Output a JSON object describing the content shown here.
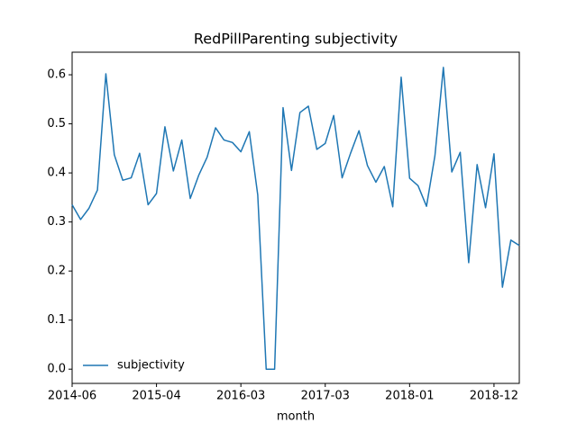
{
  "chart_data": {
    "type": "line",
    "title": "RedPillParenting subjectivity",
    "x_label": "month",
    "categories": [
      "2014-06",
      null,
      null,
      null,
      null,
      null,
      null,
      null,
      null,
      null,
      "2015-04",
      null,
      null,
      null,
      null,
      null,
      null,
      null,
      null,
      null,
      "2016-03",
      null,
      null,
      null,
      null,
      null,
      null,
      null,
      null,
      null,
      "2017-03",
      null,
      null,
      null,
      null,
      null,
      null,
      null,
      null,
      null,
      "2018-01",
      null,
      null,
      null,
      null,
      null,
      null,
      null,
      null,
      null,
      "2018-12",
      null,
      null,
      null
    ],
    "series": [
      {
        "name": "subjectivity",
        "color": "#1f77b4",
        "values": [
          0.335,
          0.305,
          0.328,
          0.365,
          0.602,
          0.437,
          0.385,
          0.39,
          0.44,
          0.335,
          0.358,
          0.494,
          0.404,
          0.467,
          0.348,
          0.395,
          0.432,
          0.492,
          0.467,
          0.462,
          0.443,
          0.484,
          0.355,
          0.0,
          0.0,
          0.533,
          0.405,
          0.523,
          0.536,
          0.448,
          0.46,
          0.517,
          0.39,
          0.44,
          0.486,
          0.415,
          0.381,
          0.413,
          0.331,
          0.595,
          0.389,
          0.374,
          0.332,
          0.435,
          0.615,
          0.402,
          0.442,
          0.217,
          0.417,
          0.329,
          0.439,
          0.167,
          0.263,
          0.252
        ]
      }
    ],
    "ylim": [
      -0.029,
      0.646
    ],
    "yticks": [
      {
        "value": 0,
        "label": "0.0"
      },
      0.1,
      0.2,
      0.3,
      0.4,
      0.5,
      0.6
    ],
    "legend": "lower left"
  }
}
